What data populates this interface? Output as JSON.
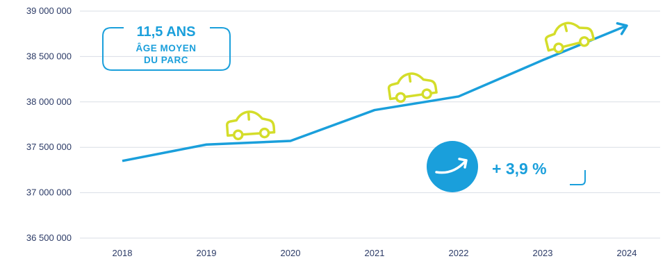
{
  "chart_data": {
    "type": "line",
    "x": [
      "2018",
      "2019",
      "2020",
      "2021",
      "2022",
      "2023",
      "2024"
    ],
    "series": [
      {
        "values": [
          37350000,
          37530000,
          37570000,
          37910000,
          38060000,
          38460000,
          38840000
        ]
      }
    ],
    "yticks": [
      "39 000 000",
      "38 500 000",
      "38 000 000",
      "37 500 000",
      "37 000 000",
      "36 500 000"
    ],
    "ytick_values": [
      39000000,
      38500000,
      38000000,
      37500000,
      37000000,
      36500000
    ],
    "ylim": [
      36500000,
      39000000
    ],
    "grid": true,
    "line_color": "#1a9fdb",
    "title": "",
    "xlabel": "",
    "ylabel": ""
  },
  "annotations": {
    "age_value": "11,5 ANS",
    "age_line1": "ÂGE MOYEN",
    "age_line2": "DU PARC",
    "growth": "+ 3,9 %",
    "accent_color": "#1a9fdb",
    "car_color": "#d4dd2a",
    "icons": [
      "car-icon",
      "growth-arrow-icon"
    ]
  }
}
